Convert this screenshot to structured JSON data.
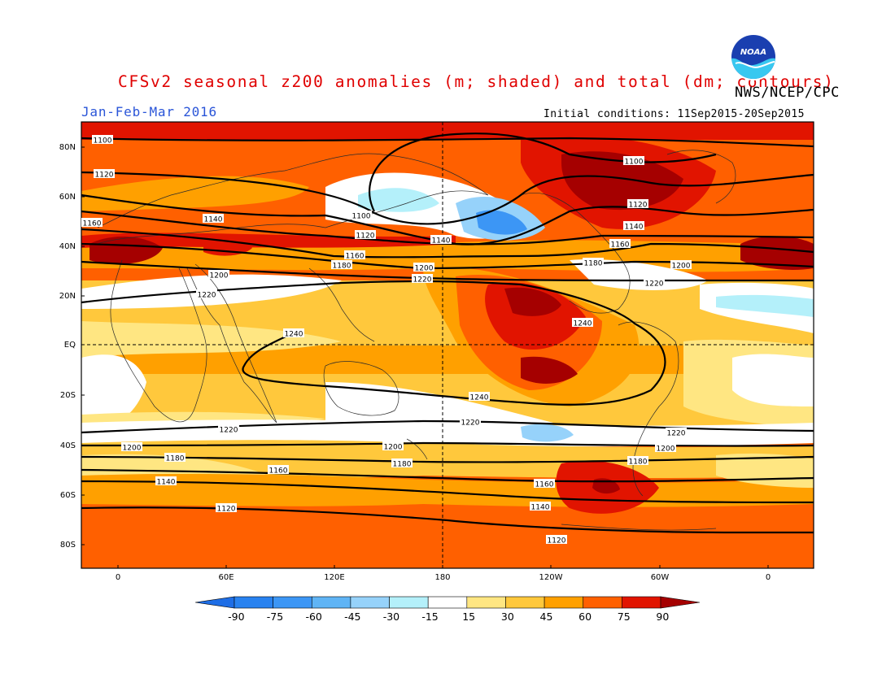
{
  "header": {
    "title": "CFSv2 seasonal z200 anomalies (m; shaded) and total (dm; contours)",
    "agency": "NWS/NCEP/CPC",
    "period": "Jan-Feb-Mar 2016",
    "initial_conditions": "Initial conditions: 11Sep2015-20Sep2015",
    "logo_text": "NOAA"
  },
  "map": {
    "lat_labels": [
      "80N",
      "60N",
      "40N",
      "20N",
      "EQ",
      "20S",
      "40S",
      "60S",
      "80S"
    ],
    "lon_labels": [
      "0",
      "60E",
      "120E",
      "180",
      "120W",
      "60W",
      "0"
    ]
  },
  "colorbar": {
    "labels": [
      "-90",
      "-75",
      "-60",
      "-45",
      "-30",
      "-15",
      "15",
      "30",
      "45",
      "60",
      "75",
      "90"
    ],
    "colors": [
      "#1e6ee6",
      "#2882f0",
      "#3c96f5",
      "#5fb4f5",
      "#96d2fa",
      "#b4f0fa",
      "#ffffff",
      "#ffe682",
      "#ffc83c",
      "#ffa000",
      "#ff6000",
      "#e11400",
      "#a50000"
    ]
  },
  "contours": {
    "labels": [
      {
        "id": "n80-a",
        "text": "1100"
      },
      {
        "id": "n80-b",
        "text": "1100"
      },
      {
        "id": "n60-a",
        "text": "1120"
      },
      {
        "id": "n60-b",
        "text": "1120"
      },
      {
        "id": "n60-c",
        "text": "1120"
      },
      {
        "id": "n55-a",
        "text": "1140"
      },
      {
        "id": "n55-b",
        "text": "1140"
      },
      {
        "id": "n55-c",
        "text": "1140"
      },
      {
        "id": "n50-a",
        "text": "1100"
      },
      {
        "id": "n45-a",
        "text": "1160"
      },
      {
        "id": "n45-b",
        "text": "1160"
      },
      {
        "id": "n45-c",
        "text": "1160"
      },
      {
        "id": "n35-a",
        "text": "1180"
      },
      {
        "id": "n35-b",
        "text": "1180"
      },
      {
        "id": "n30-a",
        "text": "1200"
      },
      {
        "id": "n30-b",
        "text": "1200"
      },
      {
        "id": "n30-c",
        "text": "1200"
      },
      {
        "id": "n25-a",
        "text": "1220"
      },
      {
        "id": "n25-b",
        "text": "1220"
      },
      {
        "id": "n25-c",
        "text": "1220"
      },
      {
        "id": "eq-a",
        "text": "1240"
      },
      {
        "id": "eq-b",
        "text": "1240"
      },
      {
        "id": "eq-c",
        "text": "1240"
      },
      {
        "id": "s30-a",
        "text": "1220"
      },
      {
        "id": "s30-b",
        "text": "1220"
      },
      {
        "id": "s30-c",
        "text": "1220"
      },
      {
        "id": "s40-a",
        "text": "1200"
      },
      {
        "id": "s40-b",
        "text": "1200"
      },
      {
        "id": "s40-c",
        "text": "1200"
      },
      {
        "id": "s45-a",
        "text": "1180"
      },
      {
        "id": "s45-b",
        "text": "1180"
      },
      {
        "id": "s45-c",
        "text": "1180"
      },
      {
        "id": "s50-a",
        "text": "1160"
      },
      {
        "id": "s50-b",
        "text": "1160"
      },
      {
        "id": "s55-a",
        "text": "1140"
      },
      {
        "id": "s55-b",
        "text": "1140"
      },
      {
        "id": "s65-a",
        "text": "1120"
      },
      {
        "id": "s65-b",
        "text": "1120"
      }
    ]
  }
}
